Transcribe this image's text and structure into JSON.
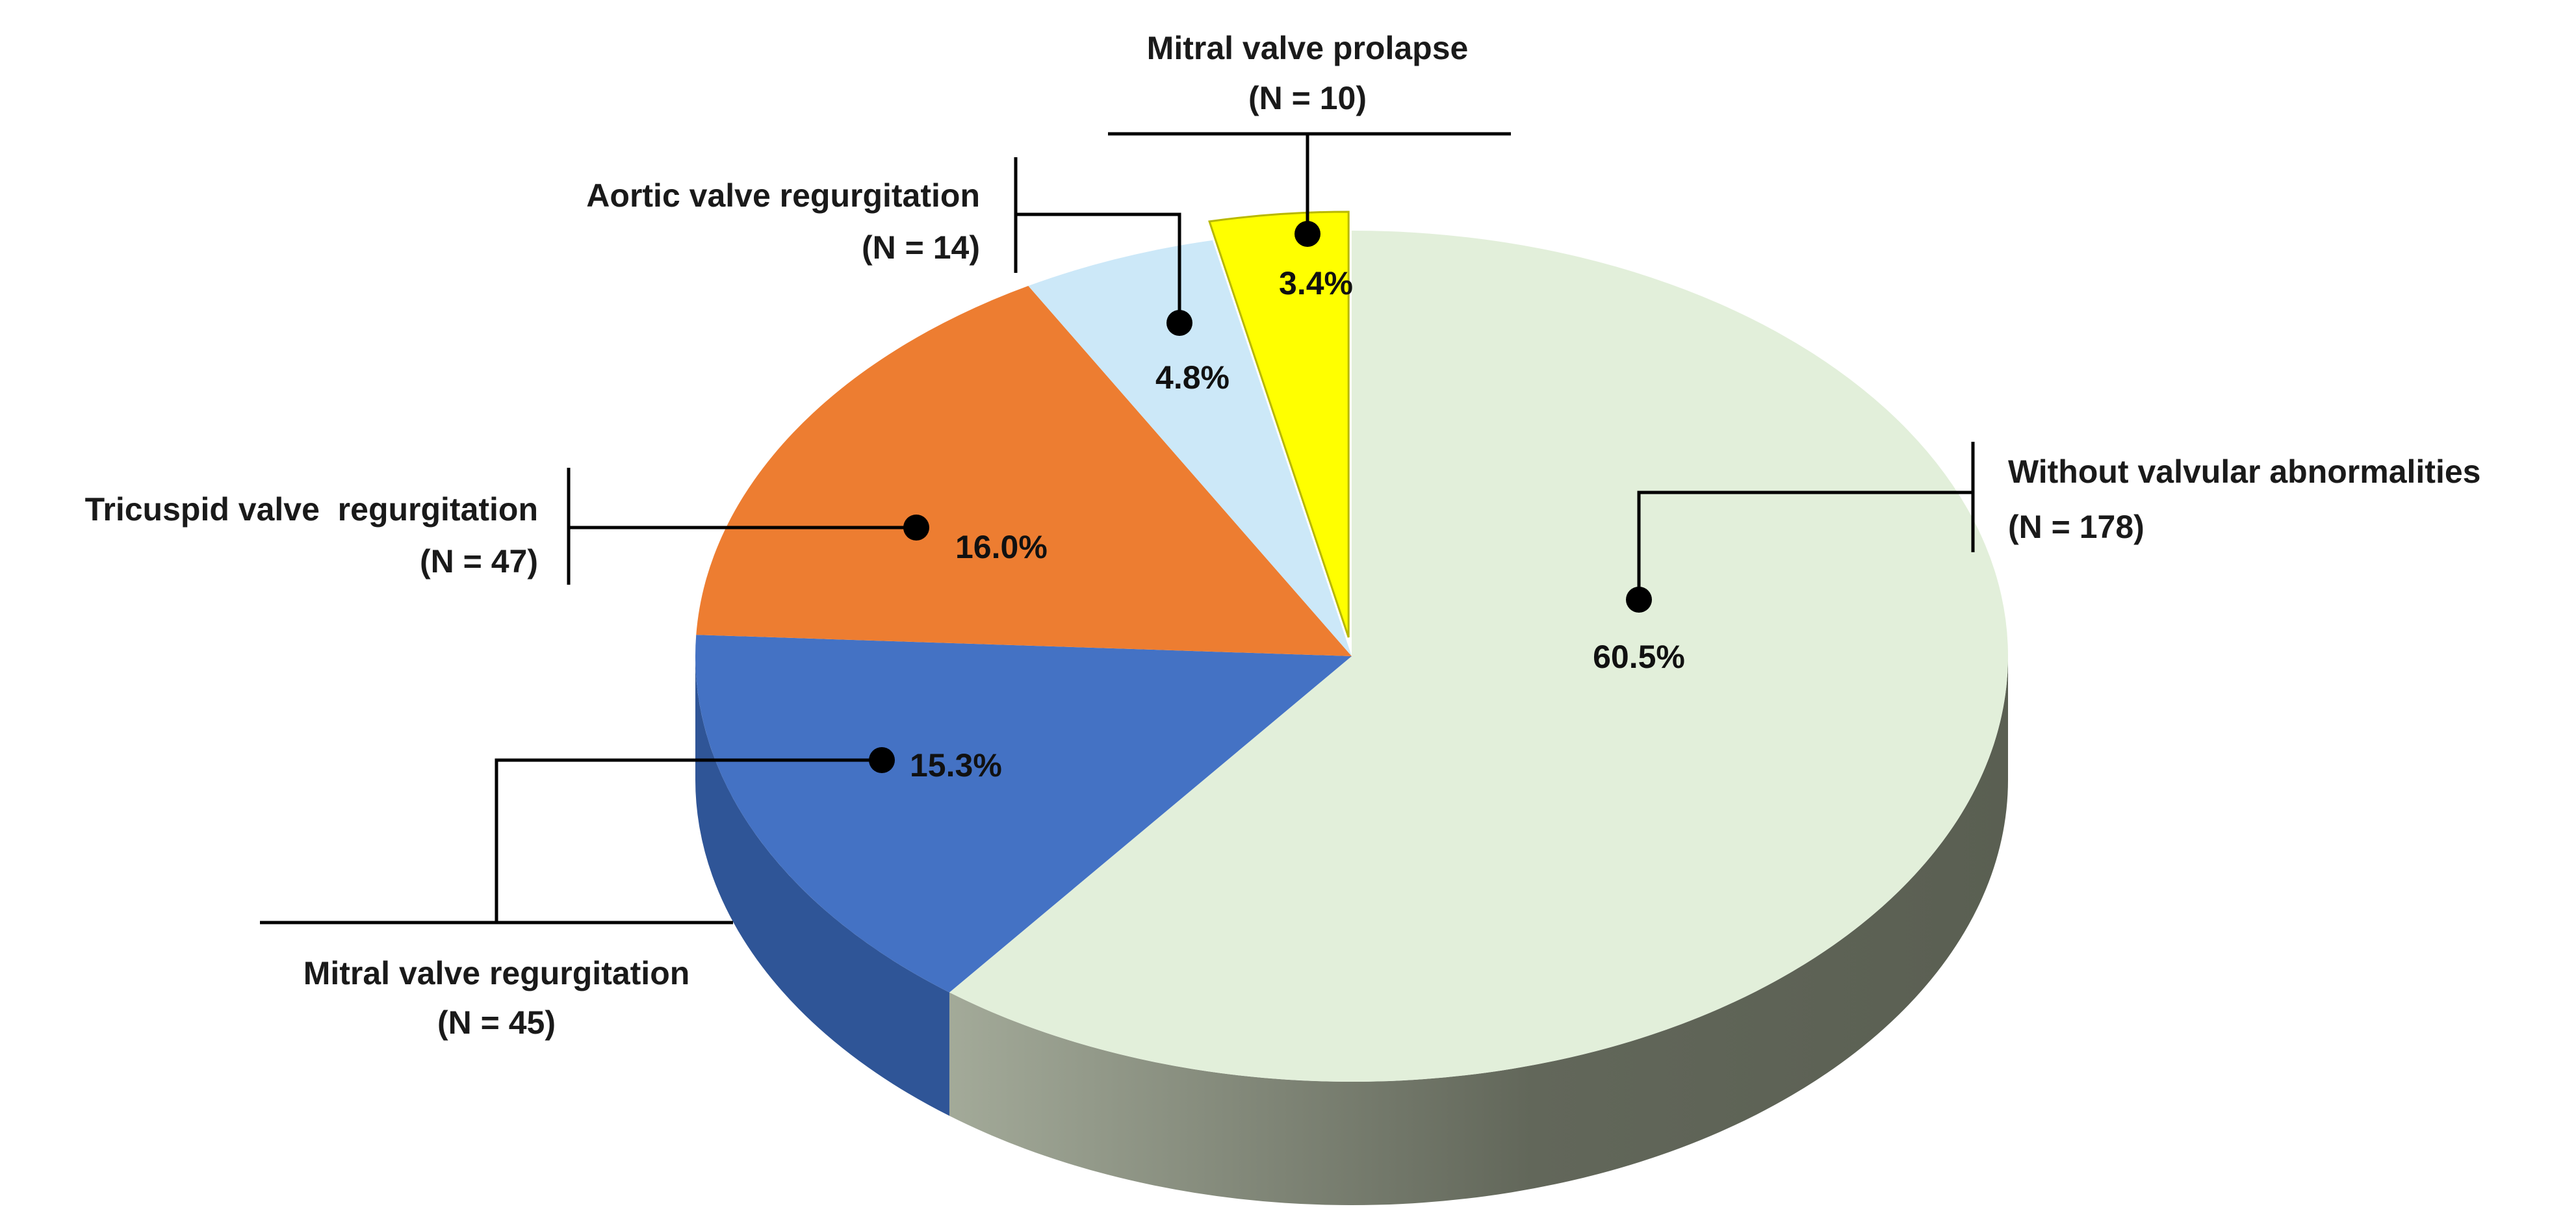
{
  "chart_data": {
    "type": "pie",
    "style": "3d",
    "start_angle_deg": 0,
    "direction": "clockwise",
    "slices": [
      {
        "label": "Without valvular abnormalities",
        "n_label": "(N = 178)",
        "n": 178,
        "value": 60.5,
        "value_label": "60.5%",
        "color": "#E2EFDA",
        "side_color": "#6B7062",
        "exploded": false
      },
      {
        "label": "Mitral valve regurgitation",
        "n_label": "(N = 45)",
        "n": 45,
        "value": 15.3,
        "value_label": "15.3%",
        "color": "#4472C4",
        "side_color": "#2F5597",
        "exploded": false
      },
      {
        "label": "Tricuspid valve  regurgitation",
        "n_label": "(N = 47)",
        "n": 47,
        "value": 16.0,
        "value_label": "16.0%",
        "color": "#ED7D31",
        "side_color": "#B55A1E",
        "exploded": false
      },
      {
        "label": "Aortic valve regurgitation",
        "n_label": "(N = 14)",
        "n": 14,
        "value": 4.8,
        "value_label": "4.8%",
        "color": "#CCE8F8",
        "side_color": "#9CB8C8",
        "exploded": false
      },
      {
        "label": "Mitral valve prolapse",
        "n_label": "(N = 10)",
        "n": 10,
        "value": 3.4,
        "value_label": "3.4%",
        "color": "#FFFF00",
        "side_color": "#C8C800",
        "exploded": true
      }
    ],
    "legend": "none",
    "data_labels": "inside"
  }
}
